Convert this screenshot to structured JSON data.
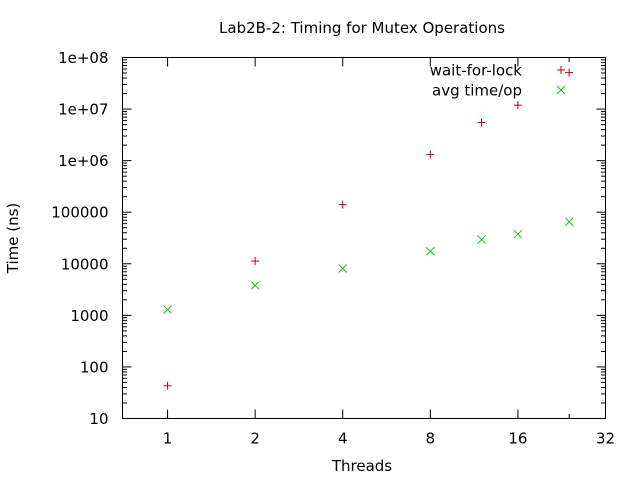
{
  "chart_data": {
    "type": "scatter",
    "title": "Lab2B-2: Timing for Mutex Operations",
    "xlabel": "Threads",
    "ylabel": "Time (ns)",
    "x_scale": "log2",
    "y_scale": "log10",
    "xlim": [
      0.7,
      32
    ],
    "ylim": [
      10,
      100000000
    ],
    "x_ticks": [
      {
        "value": 1,
        "label": "1"
      },
      {
        "value": 2,
        "label": "2"
      },
      {
        "value": 4,
        "label": "4"
      },
      {
        "value": 8,
        "label": "8"
      },
      {
        "value": 16,
        "label": "16"
      },
      {
        "value": 32,
        "label": "32"
      }
    ],
    "y_ticks": [
      {
        "value": 10,
        "label": "10"
      },
      {
        "value": 100,
        "label": "100"
      },
      {
        "value": 1000,
        "label": "1000"
      },
      {
        "value": 10000,
        "label": "10000"
      },
      {
        "value": 100000,
        "label": "100000"
      },
      {
        "value": 1000000,
        "label": "1e+06"
      },
      {
        "value": 10000000,
        "label": "1e+07"
      },
      {
        "value": 100000000,
        "label": "1e+08"
      }
    ],
    "grid": false,
    "legend_position": "top-right",
    "series": [
      {
        "name": "wait-for-lock",
        "marker": "plus",
        "color": "#cc0000",
        "points": [
          {
            "x": 1,
            "y": 43
          },
          {
            "x": 2,
            "y": 11300
          },
          {
            "x": 4,
            "y": 140000
          },
          {
            "x": 8,
            "y": 1320000
          },
          {
            "x": 12,
            "y": 5500000
          },
          {
            "x": 16,
            "y": 11900000
          },
          {
            "x": 24,
            "y": 51000000
          }
        ]
      },
      {
        "name": "avg time/op",
        "marker": "cross",
        "color": "#22bb22",
        "points": [
          {
            "x": 1,
            "y": 1300
          },
          {
            "x": 2,
            "y": 3800
          },
          {
            "x": 4,
            "y": 8100
          },
          {
            "x": 8,
            "y": 17500
          },
          {
            "x": 12,
            "y": 29500
          },
          {
            "x": 16,
            "y": 37500
          },
          {
            "x": 24,
            "y": 65000
          }
        ]
      }
    ]
  }
}
